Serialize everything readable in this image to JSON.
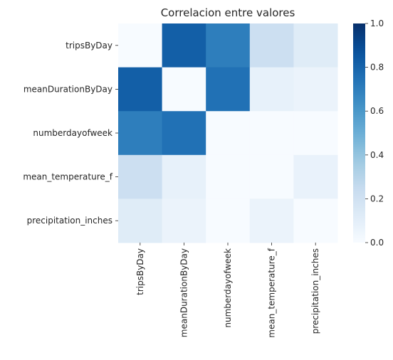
{
  "chart_data": {
    "type": "heatmap",
    "title": "Correlacion entre valores",
    "x_labels": [
      "tripsByDay",
      "meanDurationByDay",
      "numberdayofweek",
      "mean_temperature_f",
      "precipitation_inches"
    ],
    "y_labels": [
      "tripsByDay",
      "meanDurationByDay",
      "numberdayofweek",
      "mean_temperature_f",
      "precipitation_inches"
    ],
    "values": [
      [
        0.0,
        0.82,
        0.7,
        0.22,
        0.12
      ],
      [
        0.82,
        0.0,
        0.75,
        0.08,
        0.06
      ],
      [
        0.7,
        0.75,
        0.0,
        0.0,
        0.0
      ],
      [
        0.22,
        0.08,
        0.0,
        0.0,
        0.07
      ],
      [
        0.12,
        0.06,
        0.0,
        0.06,
        0.0
      ]
    ],
    "colorbar": {
      "min": 0.0,
      "max": 1.0,
      "ticks": [
        "0.0",
        "0.2",
        "0.4",
        "0.6",
        "0.8",
        "1.0"
      ],
      "colormap": "Blues",
      "low_color": "#f7fbff",
      "high_color": "#08306b"
    }
  }
}
